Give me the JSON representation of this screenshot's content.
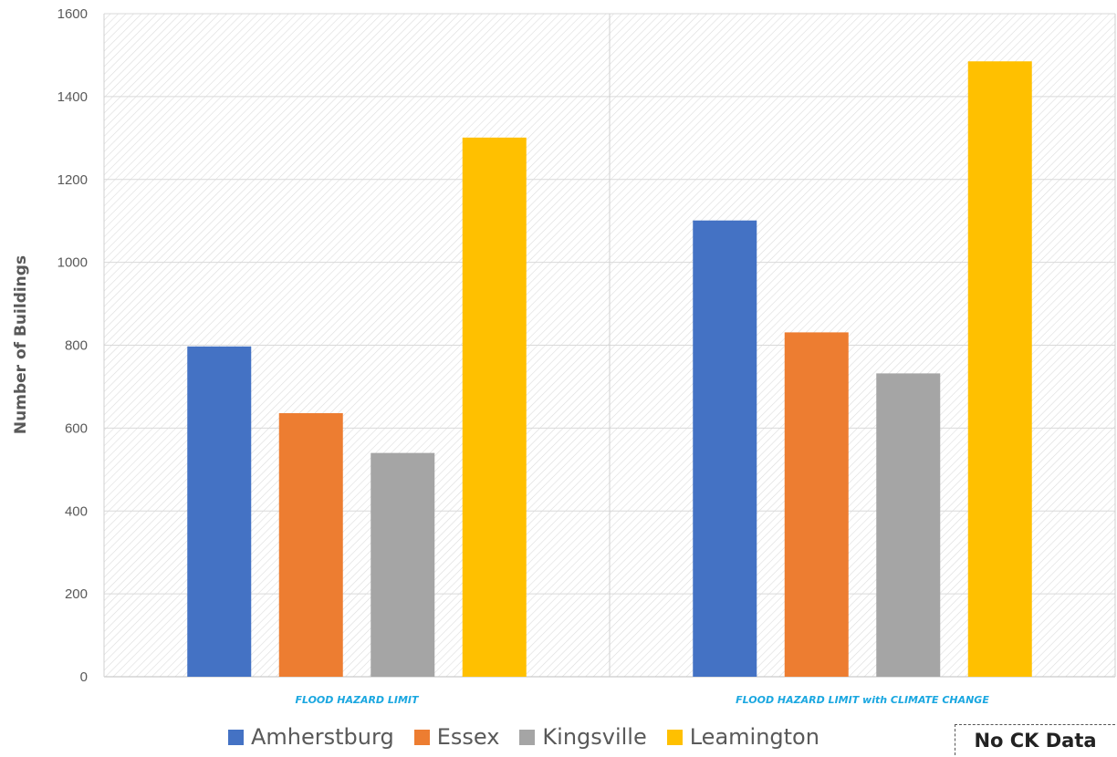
{
  "chart_data": {
    "type": "bar",
    "title": "",
    "xlabel": "",
    "ylabel": "Number of Buildings",
    "ylim": [
      0,
      1600
    ],
    "yticks": [
      0,
      200,
      400,
      600,
      800,
      1000,
      1200,
      1400,
      1600
    ],
    "grid": true,
    "legend_position": "bottom",
    "categories": [
      "FLOOD HAZARD LIMIT",
      "FLOOD HAZARD LIMIT with CLIMATE CHANGE"
    ],
    "series": [
      {
        "name": "Amherstburg",
        "color": "#4472c4",
        "values": [
          797,
          1101
        ]
      },
      {
        "name": "Essex",
        "color": "#ed7d31",
        "values": [
          636,
          831
        ]
      },
      {
        "name": "Kingsville",
        "color": "#a5a5a5",
        "values": [
          540,
          732
        ]
      },
      {
        "name": "Leamington",
        "color": "#ffc000",
        "values": [
          1301,
          1485
        ]
      }
    ]
  },
  "note": "No CK Data"
}
